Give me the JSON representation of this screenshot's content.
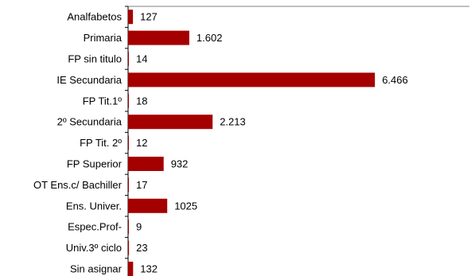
{
  "chart_data": {
    "type": "bar",
    "orientation": "horizontal",
    "categories": [
      "Analfabetos",
      "Primaria",
      "FP sin titulo",
      "IE Secundaria",
      "FP Tit.1º",
      "2º Secundaria",
      "FP Tit. 2º",
      "FP Superior",
      "OT Ens.c/ Bachiller",
      "Ens. Univer.",
      "Espec.Prof-",
      "Univ.3º ciclo",
      "Sin asignar"
    ],
    "values": [
      127,
      1602,
      14,
      6466,
      18,
      2213,
      12,
      932,
      17,
      1025,
      9,
      23,
      132
    ],
    "value_labels": [
      "127",
      "1.602",
      "14",
      "6.466",
      "18",
      "2.213",
      "12",
      "932",
      "17",
      "1025",
      "9",
      "23",
      "132"
    ],
    "bar_color": "#a50000",
    "xlim": [
      0,
      7900
    ],
    "title": "",
    "xlabel": "",
    "ylabel": "",
    "grid": false,
    "legend": "none"
  }
}
